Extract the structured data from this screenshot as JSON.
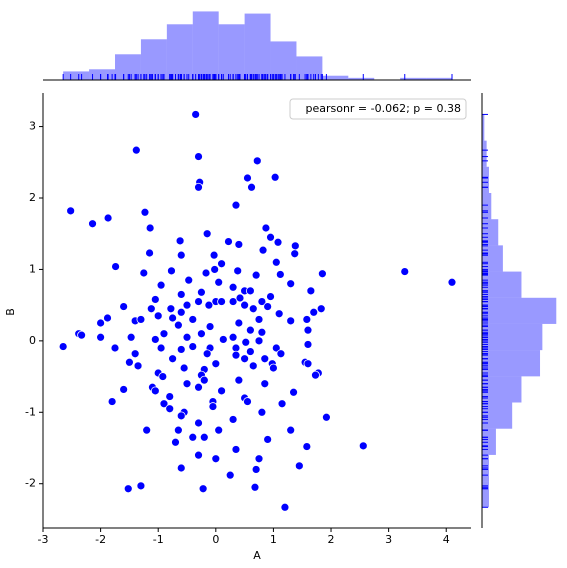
{
  "chart_data": [
    {
      "type": "scatter",
      "xlabel": "A",
      "ylabel": "B",
      "color": "#0000ff",
      "legend": "pearsonr = -0.062; p = 0.38",
      "legend_position": "upper right",
      "xlim": [
        -3,
        4.43
      ],
      "ylim": [
        -2.62,
        3.47
      ],
      "xticks": [
        -3,
        -2,
        -1,
        0,
        1,
        2,
        3,
        4
      ],
      "yticks": [
        -2,
        -1,
        0,
        1,
        2,
        3
      ],
      "x": [
        -0.35,
        -1.38,
        -0.3,
        0.72,
        0.55,
        1.03,
        -0.28,
        -0.3,
        0.62,
        0.35,
        -2.52,
        -1.23,
        -1.87,
        -2.14,
        -1.14,
        0.87,
        -0.15,
        -0.62,
        0.22,
        0.95,
        1.08,
        0.4,
        1.38,
        -1.15,
        0.82,
        -0.6,
        -0.03,
        1.37,
        0.1,
        1.05,
        -0.02,
        -1.74,
        -0.77,
        -1.25,
        -0.17,
        0.38,
        0.7,
        1.12,
        1.85,
        3.28,
        4.1,
        -0.47,
        0.05,
        -0.95,
        0.3,
        0.5,
        1.3,
        0.6,
        -0.25,
        -0.6,
        0.95,
        1.65,
        -1.05,
        -0.3,
        0,
        0.1,
        0.3,
        0.42,
        0.8,
        -1.6,
        -1.12,
        -0.78,
        -0.5,
        -0.12,
        0.5,
        0.9,
        1.83,
        -0.6,
        0.65,
        1.1,
        -1.0,
        -0.75,
        -0.4,
        0.75,
        1.3,
        1.58,
        1.7,
        -1.88,
        -2.0,
        -1.4,
        -1.3,
        -0.65,
        -0.1,
        0.4,
        0.6,
        -2.38,
        -2.33,
        -0.9,
        -0.25,
        0.3,
        0.8,
        1.6,
        -2.0,
        -1.47,
        -1.05,
        -0.5,
        0.13,
        0.52,
        0.75,
        -2.65,
        -1.75,
        -0.95,
        -0.4,
        -0.1,
        -0.6,
        0.35,
        1.05,
        1.6,
        -1.4,
        -0.15,
        0.35,
        0.6,
        1.13,
        -0.75,
        0.5,
        0.85,
        1.55,
        1.6,
        -1.5,
        0,
        0.65,
        0.98,
        -1.35,
        -0.55,
        -0.2,
        1.0,
        1.78,
        1.73,
        -1.0,
        -0.92,
        -0.25,
        -0.2,
        -0.5,
        0.4,
        0.85,
        -1.1,
        -1.05,
        -1.6,
        -0.3,
        0.1,
        1.35,
        -0.8,
        0.5,
        -1.8,
        -0.9,
        -0.05,
        0.55,
        1.15,
        -0.8,
        -0.05,
        -0.55,
        0.8,
        1.92,
        -0.6,
        0.3,
        -0.3,
        -1.2,
        -0.65,
        0.05,
        1.3,
        -0.4,
        0.9,
        -0.7,
        -0.2,
        1.58,
        2.56,
        0.35,
        -0.3,
        0.75,
        0,
        1.45,
        -0.6,
        0.7,
        0.25,
        -1.52,
        -1.3,
        -0.22,
        0.68,
        1.2
      ],
      "values": [
        3.17,
        2.67,
        2.58,
        2.52,
        2.28,
        2.29,
        2.22,
        2.15,
        2.15,
        1.9,
        1.82,
        1.8,
        1.72,
        1.64,
        1.58,
        1.58,
        1.5,
        1.4,
        1.39,
        1.45,
        1.38,
        1.35,
        1.33,
        1.23,
        1.27,
        1.2,
        1.2,
        1.22,
        1.08,
        1.1,
        1.0,
        1.04,
        0.98,
        0.95,
        0.95,
        0.98,
        0.92,
        0.93,
        0.94,
        0.97,
        0.82,
        0.85,
        0.82,
        0.78,
        0.75,
        0.7,
        0.8,
        0.7,
        0.68,
        0.65,
        0.62,
        0.7,
        0.58,
        0.55,
        0.55,
        0.55,
        0.55,
        0.6,
        0.55,
        0.48,
        0.45,
        0.45,
        0.5,
        0.5,
        0.5,
        0.48,
        0.45,
        0.4,
        0.45,
        0.38,
        0.35,
        0.32,
        0.3,
        0.3,
        0.28,
        0.3,
        0.4,
        0.32,
        0.25,
        0.28,
        0.3,
        0.22,
        0.2,
        0.25,
        0.15,
        0.1,
        0.08,
        0.1,
        0.1,
        0.05,
        0.12,
        0.15,
        0.05,
        0.05,
        0.02,
        0.05,
        0.02,
        -0.02,
        0.0,
        -0.08,
        -0.1,
        -0.1,
        -0.08,
        -0.1,
        -0.12,
        -0.1,
        -0.1,
        -0.05,
        -0.18,
        -0.18,
        -0.2,
        -0.15,
        -0.18,
        -0.25,
        -0.25,
        -0.25,
        -0.3,
        -0.32,
        -0.3,
        -0.32,
        -0.35,
        -0.32,
        -0.35,
        -0.38,
        -0.4,
        -0.38,
        -0.45,
        -0.48,
        -0.45,
        -0.5,
        -0.48,
        -0.55,
        -0.6,
        -0.55,
        -0.6,
        -0.65,
        -0.7,
        -0.68,
        -0.65,
        -0.7,
        -0.72,
        -0.78,
        -0.8,
        -0.85,
        -0.88,
        -0.85,
        -0.85,
        -0.88,
        -0.95,
        -0.92,
        -1.0,
        -1.0,
        -1.07,
        -1.05,
        -1.1,
        -1.15,
        -1.25,
        -1.25,
        -1.25,
        -1.25,
        -1.35,
        -1.38,
        -1.42,
        -1.35,
        -1.48,
        -1.47,
        -1.52,
        -1.6,
        -1.65,
        -1.65,
        -1.75,
        -1.78,
        -1.8,
        -1.88,
        -2.07,
        -2.03,
        -2.07,
        -2.05,
        -2.33
      ]
    },
    {
      "type": "histogram",
      "orientation": "vertical",
      "color": "#0000ff",
      "alpha": 0.4,
      "bins": [
        -2.65,
        -2.2,
        -1.75,
        -1.3,
        -0.85,
        -0.4,
        0.05,
        0.5,
        0.95,
        1.4,
        1.85,
        2.3,
        2.75,
        3.2,
        3.65,
        4.1
      ],
      "counts": [
        4,
        5,
        12,
        19,
        26,
        32,
        26,
        31,
        18,
        11,
        2,
        1,
        0,
        1,
        1
      ]
    },
    {
      "type": "histogram",
      "orientation": "horizontal",
      "color": "#0000ff",
      "alpha": 0.4,
      "bins": [
        -2.33,
        -1.963,
        -1.597,
        -1.23,
        -0.863,
        -0.497,
        -0.13,
        0.237,
        0.603,
        0.97,
        1.337,
        1.703,
        2.07,
        2.437,
        2.803,
        3.17
      ],
      "counts": [
        3,
        3,
        6,
        13,
        17,
        25,
        26,
        32,
        17,
        9,
        7,
        4,
        3,
        2,
        1
      ]
    }
  ]
}
